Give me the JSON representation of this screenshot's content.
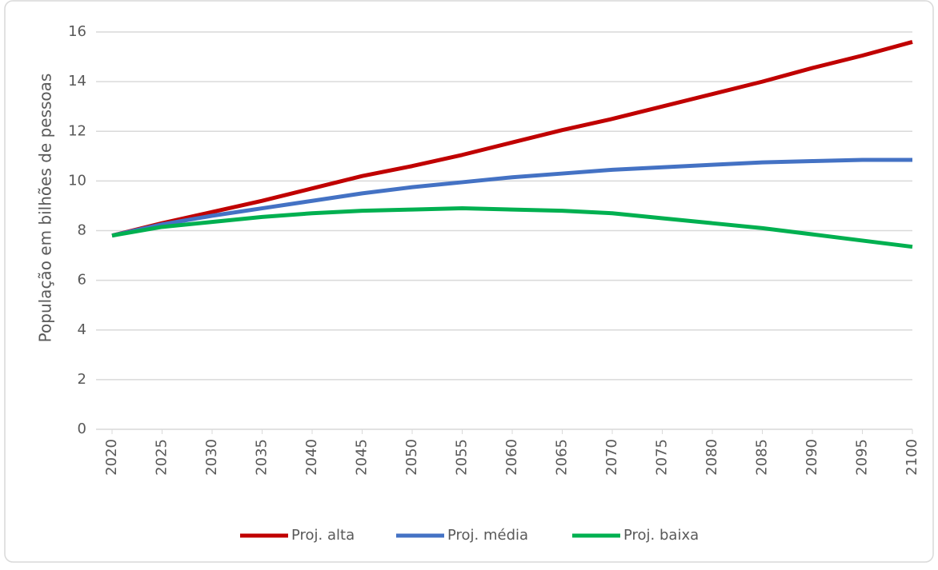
{
  "chart_data": {
    "type": "line",
    "y_label": "População em bilhões de pessoas",
    "x": [
      2020,
      2025,
      2030,
      2035,
      2040,
      2045,
      2050,
      2055,
      2060,
      2065,
      2070,
      2075,
      2080,
      2085,
      2090,
      2095,
      2100
    ],
    "series": [
      {
        "name": "Proj. alta",
        "color": "#c00000",
        "values": [
          7.8,
          8.3,
          8.75,
          9.2,
          9.7,
          10.2,
          10.6,
          11.05,
          11.55,
          12.05,
          12.5,
          13.0,
          13.5,
          14.0,
          14.55,
          15.05,
          15.6
        ]
      },
      {
        "name": "Proj. média",
        "color": "#4472c4",
        "values": [
          7.8,
          8.25,
          8.6,
          8.9,
          9.2,
          9.5,
          9.75,
          9.95,
          10.15,
          10.3,
          10.45,
          10.55,
          10.65,
          10.75,
          10.8,
          10.85,
          10.85
        ]
      },
      {
        "name": "Proj. baixa",
        "color": "#00b050",
        "values": [
          7.8,
          8.15,
          8.35,
          8.55,
          8.7,
          8.8,
          8.85,
          8.9,
          8.85,
          8.8,
          8.7,
          8.5,
          8.3,
          8.1,
          7.85,
          7.6,
          7.35
        ]
      }
    ],
    "xlim": [
      2020,
      2100
    ],
    "xticks": [
      2020,
      2025,
      2030,
      2035,
      2040,
      2045,
      2050,
      2055,
      2060,
      2065,
      2070,
      2075,
      2080,
      2085,
      2090,
      2095,
      2100
    ],
    "ylim": [
      0,
      16
    ],
    "yticks": [
      0,
      2,
      4,
      6,
      8,
      10,
      12,
      14,
      16
    ],
    "grid": true,
    "legend": "bottom"
  }
}
